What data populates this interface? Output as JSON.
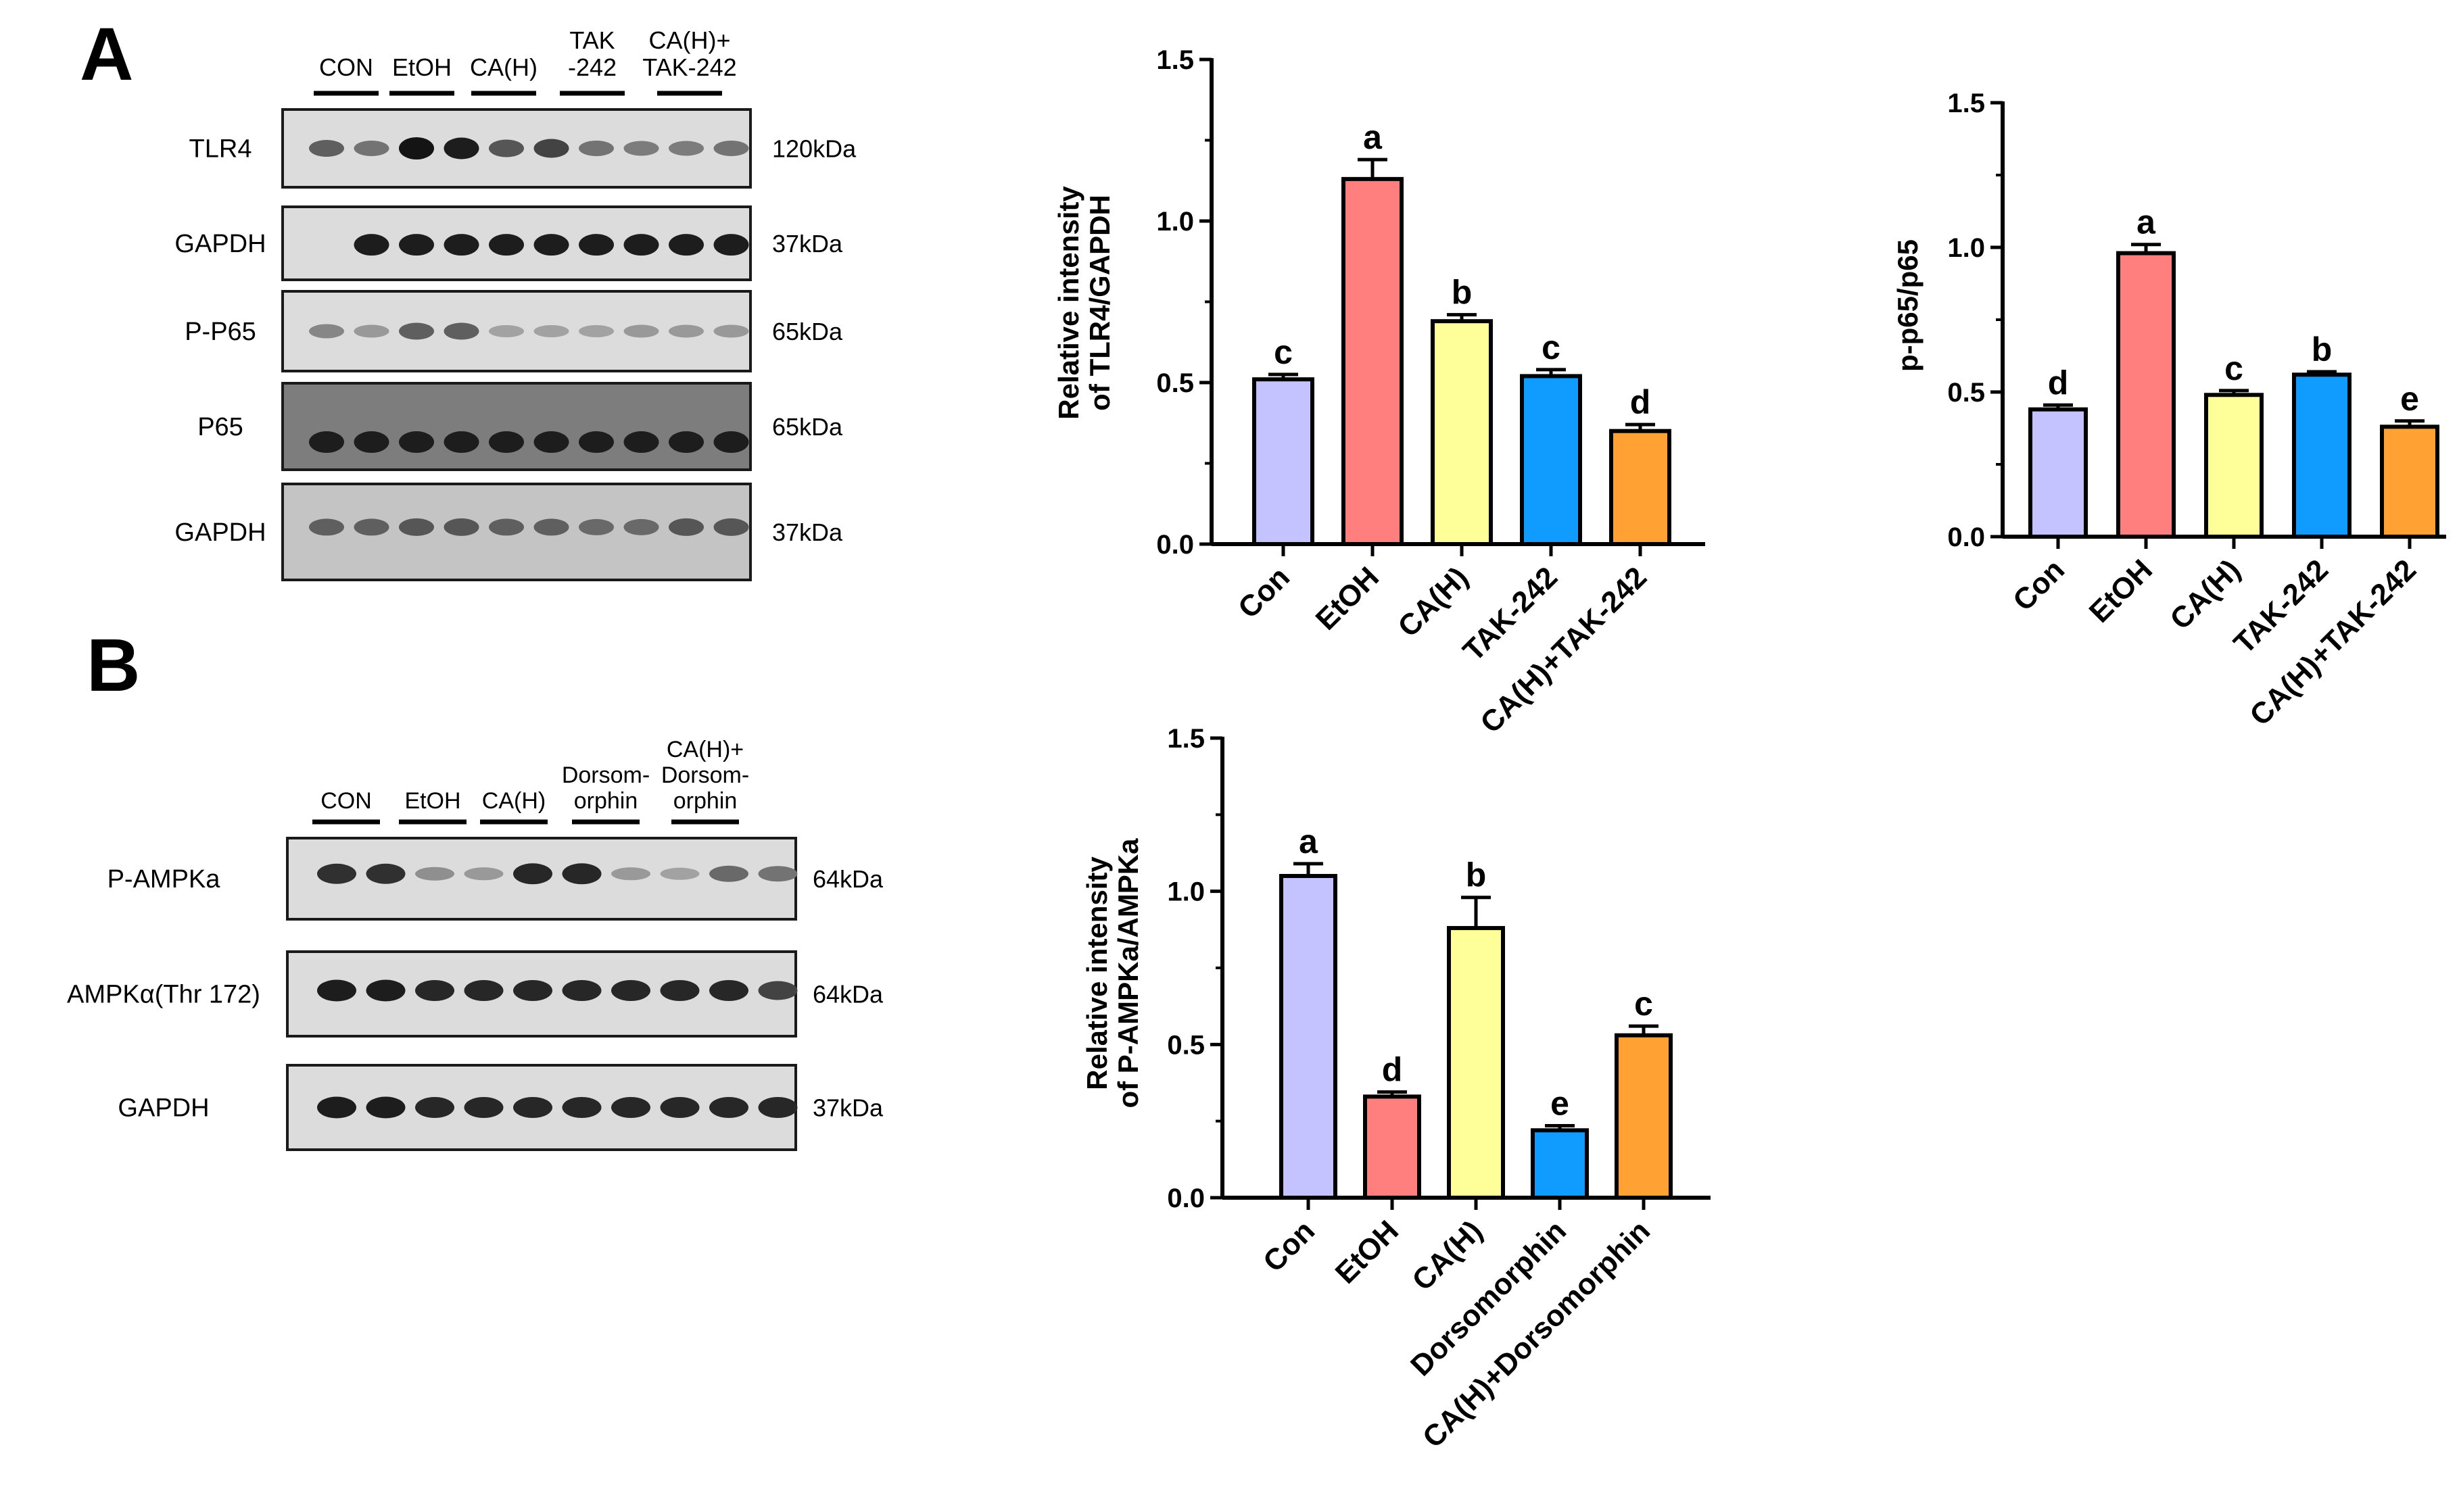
{
  "panels": {
    "a": "A",
    "b": "B"
  },
  "blot_a": {
    "lane_groups": [
      {
        "lines": [
          "CON"
        ]
      },
      {
        "lines": [
          "EtOH"
        ]
      },
      {
        "lines": [
          "CA(H)"
        ]
      },
      {
        "lines": [
          "TAK",
          "-242"
        ]
      },
      {
        "lines": [
          "CA(H)+",
          "TAK-242"
        ]
      }
    ],
    "rows": [
      {
        "label": "TLR4",
        "kda": "120kDa",
        "intensity": [
          0.55,
          0.45,
          0.95,
          0.9,
          0.6,
          0.7,
          0.45,
          0.4,
          0.4,
          0.45
        ]
      },
      {
        "label": "GAPDH",
        "kda": "37kDa",
        "intensity": [
          0.0,
          0.9,
          0.9,
          0.9,
          0.9,
          0.9,
          0.9,
          0.9,
          0.9,
          0.9
        ]
      },
      {
        "label": "P-P65",
        "kda": "65kDa",
        "intensity": [
          0.35,
          0.25,
          0.55,
          0.55,
          0.2,
          0.2,
          0.2,
          0.25,
          0.25,
          0.25
        ]
      },
      {
        "label": "P65",
        "kda": "65kDa",
        "intensity": [
          0.9,
          0.9,
          0.9,
          0.9,
          0.9,
          0.9,
          0.9,
          0.9,
          0.9,
          0.9
        ]
      },
      {
        "label": "GAPDH",
        "kda": "37kDa",
        "intensity": [
          0.55,
          0.55,
          0.6,
          0.6,
          0.55,
          0.55,
          0.5,
          0.5,
          0.6,
          0.6
        ]
      }
    ]
  },
  "blot_b": {
    "lane_groups": [
      {
        "lines": [
          "CON"
        ]
      },
      {
        "lines": [
          "EtOH"
        ]
      },
      {
        "lines": [
          "CA(H)"
        ]
      },
      {
        "lines": [
          "Dorsom-",
          "orphin"
        ]
      },
      {
        "lines": [
          "CA(H)+",
          "Dorsom-",
          "orphin"
        ]
      }
    ],
    "rows": [
      {
        "label": "P-AMPKa",
        "kda": "64kDa",
        "intensity": [
          0.8,
          0.8,
          0.3,
          0.25,
          0.85,
          0.85,
          0.25,
          0.2,
          0.5,
          0.45
        ]
      },
      {
        "label": "AMPKα(Thr 172)",
        "kda": "64kDa",
        "intensity": [
          0.9,
          0.9,
          0.85,
          0.85,
          0.85,
          0.85,
          0.85,
          0.85,
          0.85,
          0.7
        ]
      },
      {
        "label": "GAPDH",
        "kda": "37kDa",
        "intensity": [
          0.9,
          0.9,
          0.85,
          0.85,
          0.85,
          0.85,
          0.85,
          0.85,
          0.85,
          0.85
        ]
      }
    ]
  },
  "colors": {
    "con": "#c5c3ff",
    "etoh": "#ff7f7f",
    "cah": "#ffff99",
    "inhibitor": "#0f9bff",
    "combo": "#ffa233"
  },
  "chart_data": [
    {
      "type": "bar",
      "title": "",
      "ylabel": "Relative intensity of TLR4/GAPDH",
      "ylabel_lines": [
        "Relative intensity",
        "of TLR4/GAPDH"
      ],
      "categories": [
        "Con",
        "EtOH",
        "CA(H)",
        "TAK-242",
        "CA(H)+TAK-242"
      ],
      "values": [
        0.51,
        1.13,
        0.69,
        0.52,
        0.35
      ],
      "errors": [
        0.015,
        0.06,
        0.02,
        0.02,
        0.02
      ],
      "letters": [
        "c",
        "a",
        "b",
        "c",
        "d"
      ],
      "ylim": [
        0,
        1.5
      ],
      "yticks": [
        "0.0",
        "0.5",
        "1.0",
        "1.5"
      ]
    },
    {
      "type": "bar",
      "title": "",
      "ylabel": "p-p65/p65",
      "ylabel_lines": [
        "p-p65/p65"
      ],
      "categories": [
        "Con",
        "EtOH",
        "CA(H)",
        "TAK-242",
        "CA(H)+TAK-242"
      ],
      "values": [
        0.44,
        0.98,
        0.49,
        0.56,
        0.38
      ],
      "errors": [
        0.015,
        0.03,
        0.015,
        0.01,
        0.02
      ],
      "letters": [
        "d",
        "a",
        "c",
        "b",
        "e"
      ],
      "ylim": [
        0,
        1.5
      ],
      "yticks": [
        "0.0",
        "0.5",
        "1.0",
        "1.5"
      ]
    },
    {
      "type": "bar",
      "title": "",
      "ylabel": "Relative intensity of P-AMPKa/AMPKa",
      "ylabel_lines": [
        "Relative intensity",
        "of P-AMPKa/AMPKa"
      ],
      "categories": [
        "Con",
        "EtOH",
        "CA(H)",
        "Dorsomorphin",
        "CA(H)+Dorsomorphin"
      ],
      "values": [
        1.05,
        0.33,
        0.88,
        0.22,
        0.53
      ],
      "errors": [
        0.04,
        0.015,
        0.1,
        0.015,
        0.03
      ],
      "letters": [
        "a",
        "d",
        "b",
        "e",
        "c"
      ],
      "ylim": [
        0,
        1.5
      ],
      "yticks": [
        "0.0",
        "0.5",
        "1.0",
        "1.5"
      ]
    }
  ]
}
